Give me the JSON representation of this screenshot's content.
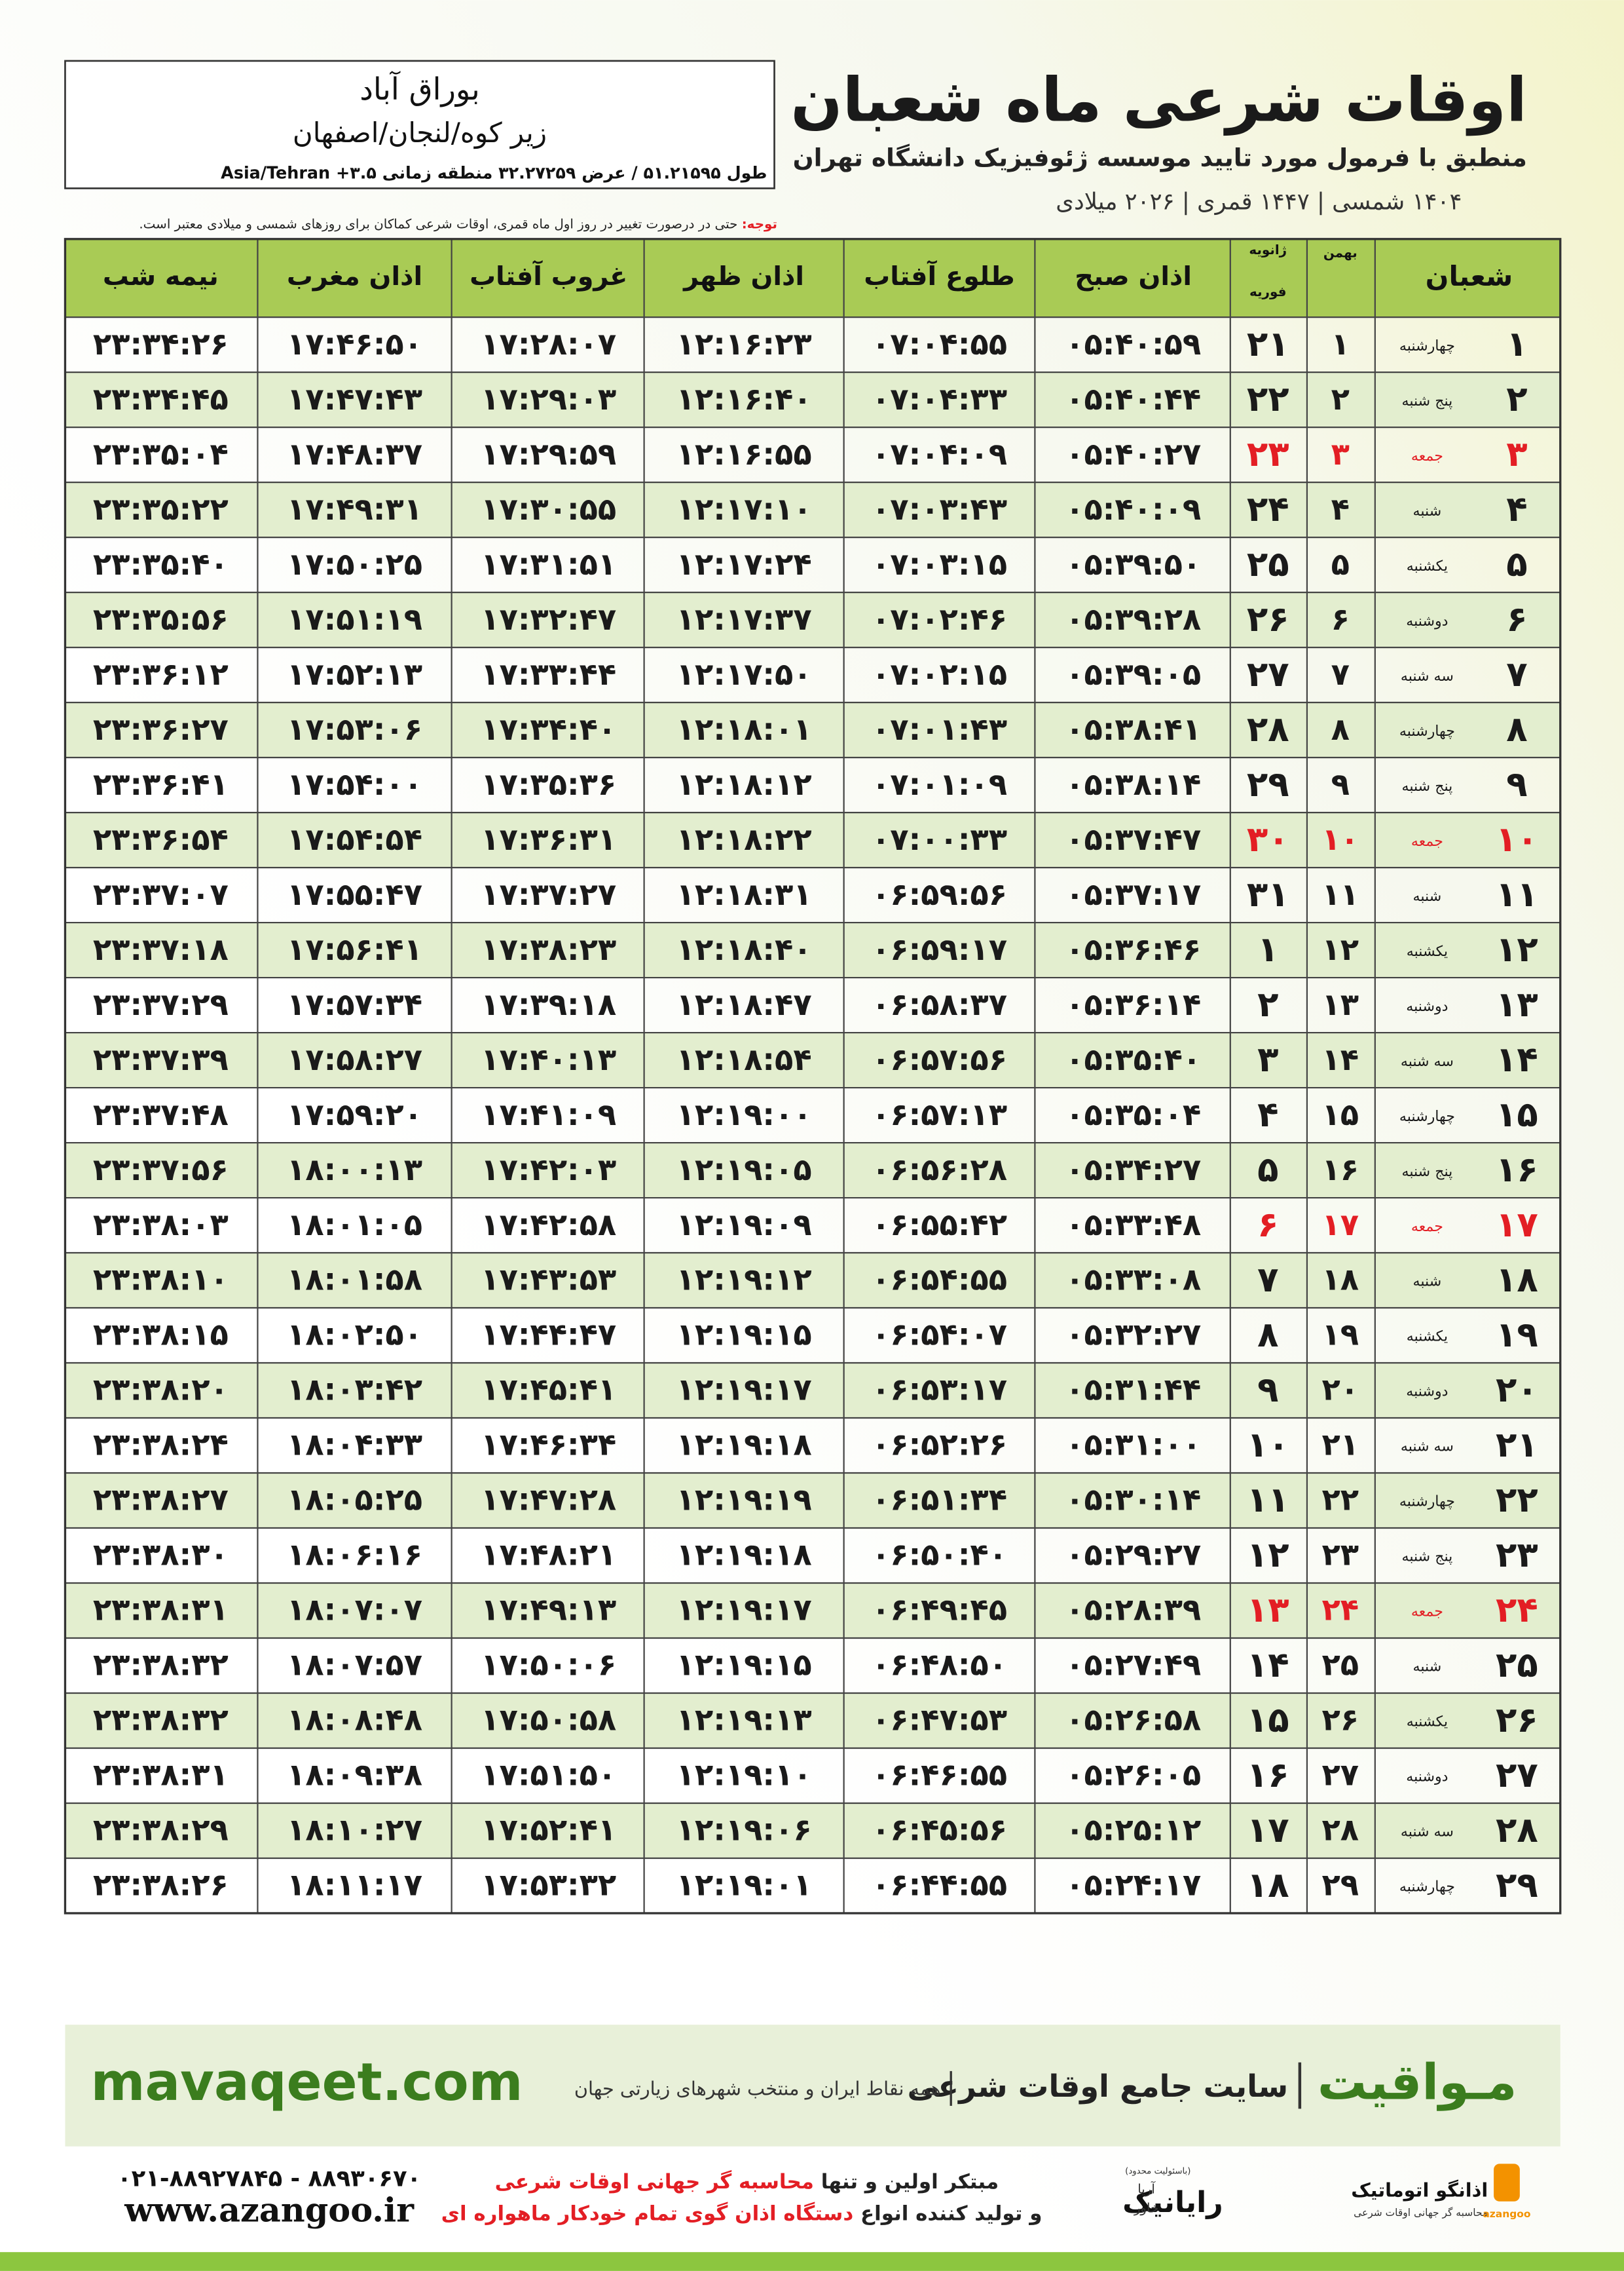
{
  "header": {
    "title": "اوقات شرعی ماه شعبان",
    "subtitle": "منطبق با فرمول مورد تایید موسسه ژئوفیزیک دانشگاه تهران",
    "calendar": "۱۴۰۴ شمسی | ۱۴۴۷ قمری | ۲۰۲۶ میلادی"
  },
  "location": {
    "name": "بوراق آباد",
    "region": "زیر کوه/لنجان/اصفهان",
    "coordinates": "طول ۵۱.۲۱۵۹۵ / عرض ۳۲.۲۷۲۵۹ منطقه زمانی ۳.۵+ Asia/Tehran"
  },
  "note": {
    "label": "توجه:",
    "text": "حتی در درصورت تغییر در روز اول ماه قمری، اوقات شرعی کماکان برای روزهای شمسی و میلادی معتبر است."
  },
  "table": {
    "header_color": "#a9cb55",
    "stripe_color": "#e3eecf",
    "text_color": "#1a1a1a",
    "holiday_color": "#e31e24",
    "columns": [
      "شعبان",
      "بهمن",
      "ژانویه",
      "فوریه",
      "اذان صبح",
      "طلوع آفتاب",
      "اذان ظهر",
      "غروب آفتاب",
      "اذان مغرب",
      "نیمه شب"
    ],
    "rows": [
      {
        "cells": [
          "۱",
          "چهارشنبه",
          "۱",
          "۲۱",
          "۰۵:۴۰:۵۹",
          "۰۷:۰۴:۵۵",
          "۱۲:۱۶:۲۳",
          "۱۷:۲۸:۰۷",
          "۱۷:۴۶:۵۰",
          "۲۳:۳۴:۲۶"
        ]
      },
      {
        "cells": [
          "۲",
          "پنج شنبه",
          "۲",
          "۲۲",
          "۰۵:۴۰:۴۴",
          "۰۷:۰۴:۳۳",
          "۱۲:۱۶:۴۰",
          "۱۷:۲۹:۰۳",
          "۱۷:۴۷:۴۳",
          "۲۳:۳۴:۴۵"
        ]
      },
      {
        "cells": [
          "۳",
          "جمعه",
          "۳",
          "۲۳",
          "۰۵:۴۰:۲۷",
          "۰۷:۰۴:۰۹",
          "۱۲:۱۶:۵۵",
          "۱۷:۲۹:۵۹",
          "۱۷:۴۸:۳۷",
          "۲۳:۳۵:۰۴"
        ],
        "holiday": true
      },
      {
        "cells": [
          "۴",
          "شنبه",
          "۴",
          "۲۴",
          "۰۵:۴۰:۰۹",
          "۰۷:۰۳:۴۳",
          "۱۲:۱۷:۱۰",
          "۱۷:۳۰:۵۵",
          "۱۷:۴۹:۳۱",
          "۲۳:۳۵:۲۲"
        ]
      },
      {
        "cells": [
          "۵",
          "یکشنبه",
          "۵",
          "۲۵",
          "۰۵:۳۹:۵۰",
          "۰۷:۰۳:۱۵",
          "۱۲:۱۷:۲۴",
          "۱۷:۳۱:۵۱",
          "۱۷:۵۰:۲۵",
          "۲۳:۳۵:۴۰"
        ]
      },
      {
        "cells": [
          "۶",
          "دوشنبه",
          "۶",
          "۲۶",
          "۰۵:۳۹:۲۸",
          "۰۷:۰۲:۴۶",
          "۱۲:۱۷:۳۷",
          "۱۷:۳۲:۴۷",
          "۱۷:۵۱:۱۹",
          "۲۳:۳۵:۵۶"
        ]
      },
      {
        "cells": [
          "۷",
          "سه شنبه",
          "۷",
          "۲۷",
          "۰۵:۳۹:۰۵",
          "۰۷:۰۲:۱۵",
          "۱۲:۱۷:۵۰",
          "۱۷:۳۳:۴۴",
          "۱۷:۵۲:۱۳",
          "۲۳:۳۶:۱۲"
        ]
      },
      {
        "cells": [
          "۸",
          "چهارشنبه",
          "۸",
          "۲۸",
          "۰۵:۳۸:۴۱",
          "۰۷:۰۱:۴۳",
          "۱۲:۱۸:۰۱",
          "۱۷:۳۴:۴۰",
          "۱۷:۵۳:۰۶",
          "۲۳:۳۶:۲۷"
        ]
      },
      {
        "cells": [
          "۹",
          "پنج شنبه",
          "۹",
          "۲۹",
          "۰۵:۳۸:۱۴",
          "۰۷:۰۱:۰۹",
          "۱۲:۱۸:۱۲",
          "۱۷:۳۵:۳۶",
          "۱۷:۵۴:۰۰",
          "۲۳:۳۶:۴۱"
        ]
      },
      {
        "cells": [
          "۱۰",
          "جمعه",
          "۱۰",
          "۳۰",
          "۰۵:۳۷:۴۷",
          "۰۷:۰۰:۳۳",
          "۱۲:۱۸:۲۲",
          "۱۷:۳۶:۳۱",
          "۱۷:۵۴:۵۴",
          "۲۳:۳۶:۵۴"
        ],
        "holiday": true
      },
      {
        "cells": [
          "۱۱",
          "شنبه",
          "۱۱",
          "۳۱",
          "۰۵:۳۷:۱۷",
          "۰۶:۵۹:۵۶",
          "۱۲:۱۸:۳۱",
          "۱۷:۳۷:۲۷",
          "۱۷:۵۵:۴۷",
          "۲۳:۳۷:۰۷"
        ]
      },
      {
        "cells": [
          "۱۲",
          "یکشنبه",
          "۱۲",
          "۱",
          "۰۵:۳۶:۴۶",
          "۰۶:۵۹:۱۷",
          "۱۲:۱۸:۴۰",
          "۱۷:۳۸:۲۳",
          "۱۷:۵۶:۴۱",
          "۲۳:۳۷:۱۸"
        ]
      },
      {
        "cells": [
          "۱۳",
          "دوشنبه",
          "۱۳",
          "۲",
          "۰۵:۳۶:۱۴",
          "۰۶:۵۸:۳۷",
          "۱۲:۱۸:۴۷",
          "۱۷:۳۹:۱۸",
          "۱۷:۵۷:۳۴",
          "۲۳:۳۷:۲۹"
        ]
      },
      {
        "cells": [
          "۱۴",
          "سه شنبه",
          "۱۴",
          "۳",
          "۰۵:۳۵:۴۰",
          "۰۶:۵۷:۵۶",
          "۱۲:۱۸:۵۴",
          "۱۷:۴۰:۱۳",
          "۱۷:۵۸:۲۷",
          "۲۳:۳۷:۳۹"
        ]
      },
      {
        "cells": [
          "۱۵",
          "چهارشنبه",
          "۱۵",
          "۴",
          "۰۵:۳۵:۰۴",
          "۰۶:۵۷:۱۳",
          "۱۲:۱۹:۰۰",
          "۱۷:۴۱:۰۹",
          "۱۷:۵۹:۲۰",
          "۲۳:۳۷:۴۸"
        ]
      },
      {
        "cells": [
          "۱۶",
          "پنج شنبه",
          "۱۶",
          "۵",
          "۰۵:۳۴:۲۷",
          "۰۶:۵۶:۲۸",
          "۱۲:۱۹:۰۵",
          "۱۷:۴۲:۰۳",
          "۱۸:۰۰:۱۳",
          "۲۳:۳۷:۵۶"
        ]
      },
      {
        "cells": [
          "۱۷",
          "جمعه",
          "۱۷",
          "۶",
          "۰۵:۳۳:۴۸",
          "۰۶:۵۵:۴۲",
          "۱۲:۱۹:۰۹",
          "۱۷:۴۲:۵۸",
          "۱۸:۰۱:۰۵",
          "۲۳:۳۸:۰۳"
        ],
        "holiday": true
      },
      {
        "cells": [
          "۱۸",
          "شنبه",
          "۱۸",
          "۷",
          "۰۵:۳۳:۰۸",
          "۰۶:۵۴:۵۵",
          "۱۲:۱۹:۱۲",
          "۱۷:۴۳:۵۳",
          "۱۸:۰۱:۵۸",
          "۲۳:۳۸:۱۰"
        ]
      },
      {
        "cells": [
          "۱۹",
          "یکشنبه",
          "۱۹",
          "۸",
          "۰۵:۳۲:۲۷",
          "۰۶:۵۴:۰۷",
          "۱۲:۱۹:۱۵",
          "۱۷:۴۴:۴۷",
          "۱۸:۰۲:۵۰",
          "۲۳:۳۸:۱۵"
        ]
      },
      {
        "cells": [
          "۲۰",
          "دوشنبه",
          "۲۰",
          "۹",
          "۰۵:۳۱:۴۴",
          "۰۶:۵۳:۱۷",
          "۱۲:۱۹:۱۷",
          "۱۷:۴۵:۴۱",
          "۱۸:۰۳:۴۲",
          "۲۳:۳۸:۲۰"
        ]
      },
      {
        "cells": [
          "۲۱",
          "سه شنبه",
          "۲۱",
          "۱۰",
          "۰۵:۳۱:۰۰",
          "۰۶:۵۲:۲۶",
          "۱۲:۱۹:۱۸",
          "۱۷:۴۶:۳۴",
          "۱۸:۰۴:۳۳",
          "۲۳:۳۸:۲۴"
        ]
      },
      {
        "cells": [
          "۲۲",
          "چهارشنبه",
          "۲۲",
          "۱۱",
          "۰۵:۳۰:۱۴",
          "۰۶:۵۱:۳۴",
          "۱۲:۱۹:۱۹",
          "۱۷:۴۷:۲۸",
          "۱۸:۰۵:۲۵",
          "۲۳:۳۸:۲۷"
        ]
      },
      {
        "cells": [
          "۲۳",
          "پنج شنبه",
          "۲۳",
          "۱۲",
          "۰۵:۲۹:۲۷",
          "۰۶:۵۰:۴۰",
          "۱۲:۱۹:۱۸",
          "۱۷:۴۸:۲۱",
          "۱۸:۰۶:۱۶",
          "۲۳:۳۸:۳۰"
        ]
      },
      {
        "cells": [
          "۲۴",
          "جمعه",
          "۲۴",
          "۱۳",
          "۰۵:۲۸:۳۹",
          "۰۶:۴۹:۴۵",
          "۱۲:۱۹:۱۷",
          "۱۷:۴۹:۱۳",
          "۱۸:۰۷:۰۷",
          "۲۳:۳۸:۳۱"
        ],
        "holiday": true
      },
      {
        "cells": [
          "۲۵",
          "شنبه",
          "۲۵",
          "۱۴",
          "۰۵:۲۷:۴۹",
          "۰۶:۴۸:۵۰",
          "۱۲:۱۹:۱۵",
          "۱۷:۵۰:۰۶",
          "۱۸:۰۷:۵۷",
          "۲۳:۳۸:۳۲"
        ]
      },
      {
        "cells": [
          "۲۶",
          "یکشنبه",
          "۲۶",
          "۱۵",
          "۰۵:۲۶:۵۸",
          "۰۶:۴۷:۵۳",
          "۱۲:۱۹:۱۳",
          "۱۷:۵۰:۵۸",
          "۱۸:۰۸:۴۸",
          "۲۳:۳۸:۳۲"
        ]
      },
      {
        "cells": [
          "۲۷",
          "دوشنبه",
          "۲۷",
          "۱۶",
          "۰۵:۲۶:۰۵",
          "۰۶:۴۶:۵۵",
          "۱۲:۱۹:۱۰",
          "۱۷:۵۱:۵۰",
          "۱۸:۰۹:۳۸",
          "۲۳:۳۸:۳۱"
        ]
      },
      {
        "cells": [
          "۲۸",
          "سه شنبه",
          "۲۸",
          "۱۷",
          "۰۵:۲۵:۱۲",
          "۰۶:۴۵:۵۶",
          "۱۲:۱۹:۰۶",
          "۱۷:۵۲:۴۱",
          "۱۸:۱۰:۲۷",
          "۲۳:۳۸:۲۹"
        ]
      },
      {
        "cells": [
          "۲۹",
          "چهارشنبه",
          "۲۹",
          "۱۸",
          "۰۵:۲۴:۱۷",
          "۰۶:۴۴:۵۵",
          "۱۲:۱۹:۰۱",
          "۱۷:۵۳:۳۲",
          "۱۸:۱۱:۱۷",
          "۲۳:۳۸:۲۶"
        ]
      }
    ]
  },
  "banner": {
    "site_name": "مـواقیت",
    "site_slogan": "سایت جامع اوقات شرعی",
    "site_scope": "همه نقاط ایران و منتخب شهرهای زیارتی جهان",
    "url": "mavaqeet.com"
  },
  "footer": {
    "phones": "۰۲۱-۸۸۹۲۷۸۴۵ - ۸۸۹۳۰۶۷۰",
    "website": "www.azangoo.ir",
    "line1": [
      "مبتکر اولین و تنها",
      "محاسبه گر جهانی اوقات شرعی"
    ],
    "line2": [
      "و تولید کننده انواع",
      "دستگاه اذان گوی تمام خودکار ماهواره ای"
    ],
    "raianik": {
      "note": "(باسئولیت محدود)",
      "name": "رایانیک",
      "sub1": "آریا",
      "sub2": "خاور"
    },
    "azangoo": {
      "name": "اذانگو اتوماتیک",
      "tagline": "محاسبه گر جهانی اوقات شرعی",
      "latin": "azangoo"
    }
  }
}
